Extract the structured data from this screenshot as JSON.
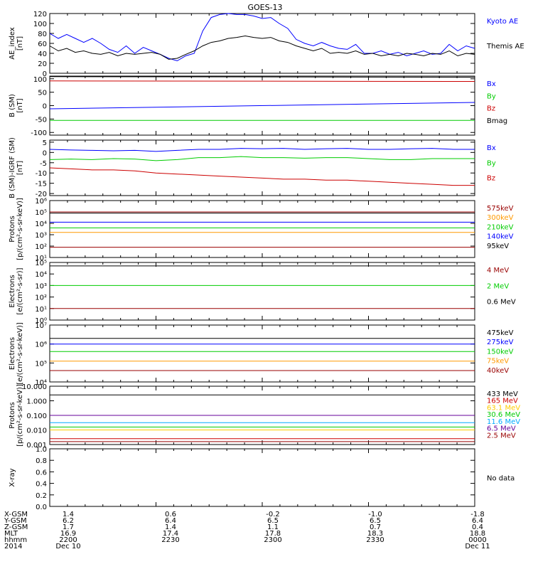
{
  "title": "GOES-13",
  "legend_colors": {
    "black": "#000000",
    "blue": "#0000ff",
    "green": "#00cc00",
    "red": "#cc0000",
    "orange": "#ff9900",
    "darkred": "#990000",
    "gold": "#ffcc00",
    "cyan": "#00aaff",
    "purple": "#660099"
  },
  "chart_data": [
    {
      "id": "ae",
      "type": "line",
      "ylabel": "AE_index\n[nT]",
      "yticks": [
        "0",
        "20",
        "40",
        "60",
        "80",
        "100",
        "120"
      ],
      "ylim": [
        0,
        120
      ],
      "series": [
        {
          "name": "Kyoto AE",
          "color": "#0000ff",
          "x": [
            0,
            2,
            4,
            6,
            8,
            10,
            12,
            14,
            16,
            18,
            20,
            22,
            24,
            26,
            28,
            30,
            32,
            34,
            36,
            38,
            40,
            42,
            44,
            46,
            48,
            50,
            52,
            54,
            56,
            58,
            60,
            62,
            64,
            66,
            68,
            70,
            72,
            74,
            76,
            78,
            80,
            82,
            84,
            86,
            88,
            90,
            92,
            94,
            96,
            98,
            100
          ],
          "y": [
            80,
            70,
            78,
            70,
            62,
            70,
            60,
            48,
            42,
            55,
            40,
            52,
            45,
            38,
            30,
            25,
            35,
            40,
            85,
            112,
            118,
            120,
            118,
            118,
            115,
            110,
            112,
            100,
            90,
            68,
            60,
            55,
            62,
            55,
            50,
            48,
            58,
            40,
            40,
            45,
            38,
            42,
            35,
            40,
            45,
            38,
            40,
            58,
            45,
            55,
            50
          ]
        },
        {
          "name": "Themis AE",
          "color": "#000000",
          "x": [
            0,
            2,
            4,
            6,
            8,
            10,
            12,
            14,
            16,
            18,
            20,
            22,
            24,
            26,
            28,
            30,
            32,
            34,
            36,
            38,
            40,
            42,
            44,
            46,
            48,
            50,
            52,
            54,
            56,
            58,
            60,
            62,
            64,
            66,
            68,
            70,
            72,
            74,
            76,
            78,
            80,
            82,
            84,
            86,
            88,
            90,
            92,
            94,
            96,
            98,
            100
          ],
          "y": [
            55,
            45,
            50,
            42,
            45,
            40,
            38,
            42,
            35,
            40,
            38,
            40,
            42,
            38,
            28,
            30,
            38,
            45,
            55,
            62,
            65,
            70,
            72,
            75,
            72,
            70,
            72,
            65,
            62,
            55,
            50,
            45,
            50,
            40,
            42,
            40,
            45,
            38,
            40,
            35,
            38,
            35,
            40,
            38,
            35,
            40,
            38,
            45,
            35,
            40,
            38
          ]
        }
      ]
    },
    {
      "id": "bsm",
      "type": "line",
      "ylabel": "B (SM)\n[nT]",
      "yticks": [
        "-100",
        "-50",
        "0",
        "50",
        "100"
      ],
      "ylim": [
        -110,
        110
      ],
      "series": [
        {
          "name": "Bx",
          "color": "#0000ff",
          "x": [
            0,
            100
          ],
          "y": [
            -12,
            12
          ]
        },
        {
          "name": "By",
          "color": "#00cc00",
          "x": [
            0,
            100
          ],
          "y": [
            -55,
            -55
          ]
        },
        {
          "name": "Bz",
          "color": "#cc0000",
          "x": [
            0,
            100
          ],
          "y": [
            92,
            90
          ]
        },
        {
          "name": "Bmag",
          "color": "#000000",
          "x": [
            0,
            100
          ],
          "y": [
            108,
            106
          ]
        }
      ]
    },
    {
      "id": "bigrf",
      "type": "line",
      "ylabel": "B (SM)-IGRF (SM)\n[nT]",
      "yticks": [
        "-20",
        "-15",
        "-10",
        "-5",
        "0",
        "5"
      ],
      "ylim": [
        -21,
        6
      ],
      "series": [
        {
          "name": "Bx",
          "color": "#0000ff",
          "x": [
            0,
            5,
            10,
            15,
            20,
            25,
            30,
            35,
            40,
            45,
            50,
            55,
            60,
            65,
            70,
            75,
            80,
            85,
            90,
            95,
            100
          ],
          "y": [
            1.5,
            1.2,
            1.0,
            0.8,
            1.0,
            0.5,
            1.0,
            1.5,
            1.5,
            2.0,
            1.8,
            2.0,
            1.5,
            1.8,
            2.0,
            1.5,
            1.5,
            1.8,
            2.0,
            1.5,
            1.5
          ]
        },
        {
          "name": "By",
          "color": "#00cc00",
          "x": [
            0,
            5,
            10,
            15,
            20,
            25,
            30,
            35,
            40,
            45,
            50,
            55,
            60,
            65,
            70,
            75,
            80,
            85,
            90,
            95,
            100
          ],
          "y": [
            -3.5,
            -3.2,
            -3.5,
            -3.0,
            -3.2,
            -4.0,
            -3.5,
            -2.5,
            -2.5,
            -2.0,
            -2.5,
            -2.5,
            -2.8,
            -2.5,
            -2.5,
            -3.0,
            -3.5,
            -3.5,
            -3.0,
            -3.0,
            -3.0
          ]
        },
        {
          "name": "Bz",
          "color": "#cc0000",
          "x": [
            0,
            5,
            10,
            15,
            20,
            25,
            30,
            35,
            40,
            45,
            50,
            55,
            60,
            65,
            70,
            75,
            80,
            85,
            90,
            95,
            100
          ],
          "y": [
            -7.5,
            -8.0,
            -8.5,
            -8.5,
            -9.0,
            -10.0,
            -10.5,
            -11.0,
            -11.5,
            -12.0,
            -12.5,
            -13.0,
            -13.0,
            -13.5,
            -13.5,
            -14.0,
            -14.5,
            -15.0,
            -15.5,
            -16.0,
            -16.0
          ]
        }
      ]
    },
    {
      "id": "protons_mev",
      "type": "line",
      "log": true,
      "ylabel": "Protons\n[p/(cm²-s-sr-keV)]",
      "yticks": [
        "10¹",
        "10²",
        "10³",
        "10⁴",
        "10⁵",
        "10⁶"
      ],
      "ylim": [
        1,
        6
      ],
      "series": [
        {
          "name": "575keV",
          "color": "#990000",
          "x": [
            0,
            100
          ],
          "y": [
            5.0,
            5.0
          ]
        },
        {
          "name": "300keV",
          "color": "#ff9900",
          "x": [
            0,
            100
          ],
          "y": [
            3.2,
            3.2
          ]
        },
        {
          "name": "210keV",
          "color": "#00cc00",
          "x": [
            0,
            100
          ],
          "y": [
            3.6,
            3.6
          ]
        },
        {
          "name": "140keV",
          "color": "#0000ff",
          "x": [
            0,
            100
          ],
          "y": [
            4.1,
            4.1
          ]
        },
        {
          "name": "95keV",
          "color": "#000000",
          "x": [
            0,
            100
          ],
          "y": [
            4.9,
            4.9
          ]
        },
        {
          "name": "",
          "color": "#990000",
          "x": [
            0,
            100
          ],
          "y": [
            1.9,
            1.9
          ]
        }
      ]
    },
    {
      "id": "electrons_mev",
      "type": "line",
      "log": true,
      "ylabel": "Electrons\n[e/(cm²-s-sr)]",
      "yticks": [
        "10⁰",
        "10¹",
        "10²",
        "10³",
        "10⁴",
        "10⁵"
      ],
      "ylim": [
        0,
        5
      ],
      "series": [
        {
          "name": "4 MeV",
          "color": "#990000",
          "x": [
            0,
            100
          ],
          "y": [
            1.0,
            1.0
          ]
        },
        {
          "name": "2 MeV",
          "color": "#00cc00",
          "x": [
            0,
            100
          ],
          "y": [
            3.0,
            3.0
          ]
        },
        {
          "name": "0.6 MeV",
          "color": "#000000",
          "x": [
            0,
            100
          ],
          "y": [
            4.7,
            4.7
          ]
        }
      ]
    },
    {
      "id": "electrons_kev",
      "type": "line",
      "log": true,
      "ylabel": "Electrons\n[e/(cm²-s-sr-keV)]",
      "yticks": [
        "10⁴",
        "10⁵",
        "10⁶",
        "10⁷"
      ],
      "ylim": [
        4,
        7
      ],
      "series": [
        {
          "name": "475keV",
          "color": "#000000",
          "x": [
            0,
            100
          ],
          "y": [
            6.3,
            6.3
          ]
        },
        {
          "name": "275keV",
          "color": "#0000ff",
          "x": [
            0,
            100
          ],
          "y": [
            6.0,
            6.0
          ]
        },
        {
          "name": "150keV",
          "color": "#00cc00",
          "x": [
            0,
            100
          ],
          "y": [
            5.6,
            5.6
          ]
        },
        {
          "name": "75keV",
          "color": "#ff9900",
          "x": [
            0,
            100
          ],
          "y": [
            5.1,
            5.1
          ]
        },
        {
          "name": "40keV",
          "color": "#990000",
          "x": [
            0,
            100
          ],
          "y": [
            4.6,
            4.6
          ]
        }
      ]
    },
    {
      "id": "protons_kev",
      "type": "line",
      "log": true,
      "ylabel": "Protons\n[p/(cm²-s-sr-keV)]",
      "yticks": [
        "0.001",
        "0.010",
        "0.100",
        "1.000",
        "10.000"
      ],
      "ylim": [
        -3,
        1
      ],
      "series": [
        {
          "name": "433 MeV",
          "color": "#000000",
          "x": [
            0,
            100
          ],
          "y": [
            0.4,
            0.4
          ]
        },
        {
          "name": "165 MeV",
          "color": "#cc0000",
          "x": [
            0,
            100
          ],
          "y": [
            -2.6,
            -2.6
          ]
        },
        {
          "name": "63.1 MeV",
          "color": "#ffcc00",
          "x": [
            0,
            100
          ],
          "y": [
            -2.0,
            -2.0
          ]
        },
        {
          "name": "30.6 MeV",
          "color": "#00cc00",
          "x": [
            0,
            100
          ],
          "y": [
            -1.8,
            -1.8
          ]
        },
        {
          "name": "11.6 MeV",
          "color": "#00aaff",
          "x": [
            0,
            100
          ],
          "y": [
            -1.5,
            -1.5
          ]
        },
        {
          "name": "6.5 MeV",
          "color": "#660099",
          "x": [
            0,
            100
          ],
          "y": [
            -1.0,
            -1.0
          ]
        },
        {
          "name": "2.5 MeV",
          "color": "#990000",
          "x": [
            0,
            100
          ],
          "y": [
            -2.8,
            -2.8
          ]
        }
      ]
    },
    {
      "id": "xray",
      "type": "line",
      "ylabel": "X-ray",
      "yticks": [
        "0.0",
        "0.2",
        "0.4",
        "0.6",
        "0.8",
        "1.0"
      ],
      "ylim": [
        0,
        1
      ],
      "series": [],
      "note": "No data"
    }
  ],
  "ephemeris": {
    "row_labels": [
      "X-GSM",
      "Y-GSM",
      "Z-GSM",
      "MLT",
      "hhmm",
      "2014"
    ],
    "columns": [
      [
        "1.4",
        "6.2",
        "1.7",
        "16.9",
        "2200",
        "Dec 10"
      ],
      [
        "0.6",
        "6.4",
        "1.4",
        "17.4",
        "2230",
        ""
      ],
      [
        "-0.2",
        "6.5",
        "1.1",
        "17.8",
        "2300",
        ""
      ],
      [
        "-1.0",
        "6.5",
        "0.7",
        "18.3",
        "2330",
        ""
      ],
      [
        "-1.8",
        "6.4",
        "0.4",
        "18.8",
        "0000",
        "Dec 11"
      ]
    ]
  }
}
